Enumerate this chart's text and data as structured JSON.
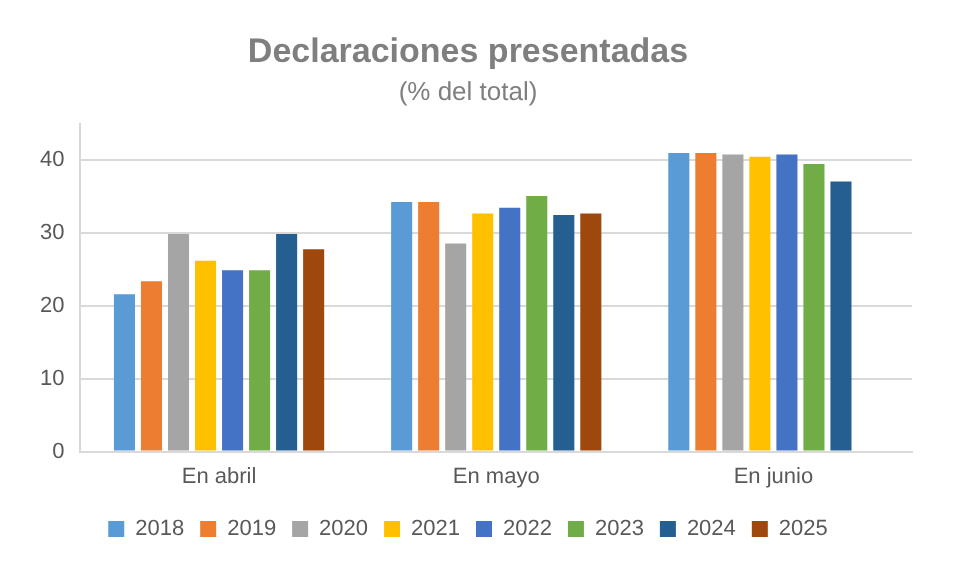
{
  "chart_data": {
    "type": "bar",
    "title": "Declaraciones presentadas",
    "subtitle": "(% del total)",
    "categories": [
      "En abril",
      "En mayo",
      "En junio"
    ],
    "series": [
      {
        "name": "2018",
        "color": "#5b9bd5",
        "values": [
          21.6,
          34.3,
          41.0
        ]
      },
      {
        "name": "2019",
        "color": "#ed7d31",
        "values": [
          23.4,
          34.3,
          41.0
        ]
      },
      {
        "name": "2020",
        "color": "#a5a5a5",
        "values": [
          29.9,
          28.6,
          40.8
        ]
      },
      {
        "name": "2021",
        "color": "#ffc000",
        "values": [
          26.2,
          32.7,
          40.5
        ]
      },
      {
        "name": "2022",
        "color": "#4472c4",
        "values": [
          24.9,
          33.5,
          40.8
        ]
      },
      {
        "name": "2023",
        "color": "#70ad47",
        "values": [
          24.9,
          35.1,
          39.5
        ]
      },
      {
        "name": "2024",
        "color": "#255e91",
        "values": [
          29.9,
          32.5,
          37.1
        ]
      },
      {
        "name": "2025",
        "color": "#9e480e",
        "values": [
          27.8,
          32.7,
          null
        ]
      }
    ],
    "ylim": [
      0,
      45
    ],
    "yticks": [
      0,
      10,
      20,
      30,
      40
    ],
    "grid": "y",
    "legend": "bottom"
  }
}
